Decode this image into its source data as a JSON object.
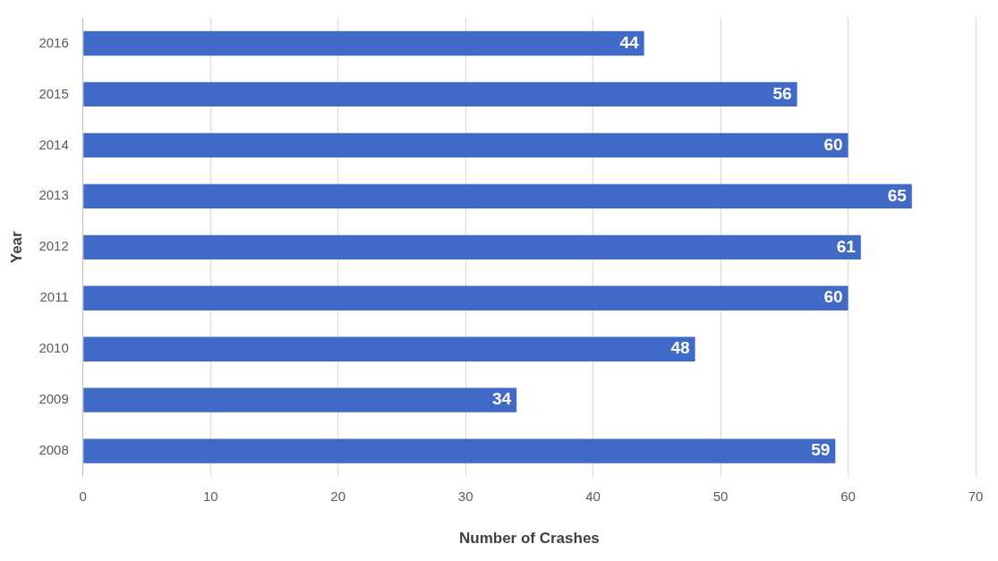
{
  "chart_data": {
    "type": "bar",
    "orientation": "horizontal",
    "xlabel": "Number of Crashes",
    "ylabel": "Year",
    "categories": [
      "2016",
      "2015",
      "2014",
      "2013",
      "2012",
      "2011",
      "2010",
      "2009",
      "2008"
    ],
    "values": [
      44,
      56,
      60,
      65,
      61,
      60,
      48,
      34,
      59
    ],
    "color": "#4169c8",
    "xlim": [
      0,
      70
    ],
    "xticks": [
      0,
      10,
      20,
      30,
      40,
      50,
      60,
      70
    ],
    "grid": "x",
    "data_labels": true,
    "legend": false
  }
}
